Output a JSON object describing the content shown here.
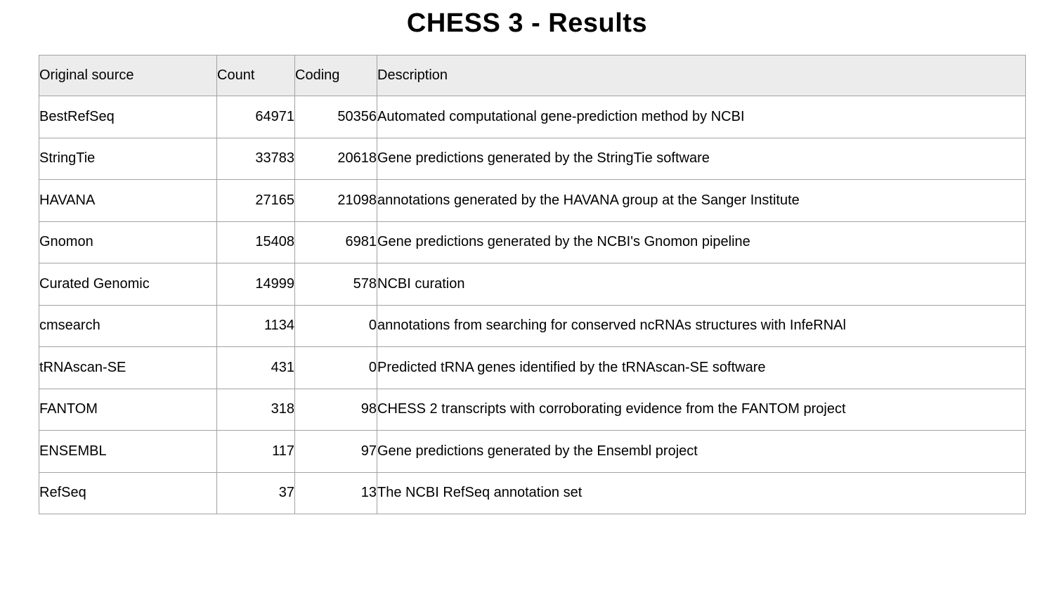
{
  "page": {
    "title": "CHESS 3 - Results"
  },
  "colors": {
    "background": "#ffffff",
    "header_bg": "#ececec",
    "border": "#a2a2a2",
    "text": "#000000"
  },
  "table": {
    "headers": [
      "Original source",
      "Count",
      "Coding",
      "Description"
    ],
    "rows": [
      {
        "source": "BestRefSeq",
        "count": "64971",
        "coding": "50356",
        "description": "Automated computational gene-prediction method by NCBI"
      },
      {
        "source": "StringTie",
        "count": "33783",
        "coding": "20618",
        "description": "Gene predictions generated by the StringTie software"
      },
      {
        "source": "HAVANA",
        "count": "27165",
        "coding": "21098",
        "description": "annotations generated by the HAVANA group at the Sanger Institute"
      },
      {
        "source": "Gnomon",
        "count": "15408",
        "coding": "6981",
        "description": "Gene predictions generated by the NCBI's Gnomon pipeline"
      },
      {
        "source": "Curated Genomic",
        "count": "14999",
        "coding": "578",
        "description": "NCBI curation"
      },
      {
        "source": "cmsearch",
        "count": "1134",
        "coding": "0",
        "description": "annotations from searching for conserved ncRNAs structures with InfeRNAl"
      },
      {
        "source": "tRNAscan-SE",
        "count": "431",
        "coding": "0",
        "description": "Predicted tRNA genes identified by the tRNAscan-SE software"
      },
      {
        "source": "FANTOM",
        "count": "318",
        "coding": "98",
        "description": "CHESS 2 transcripts with corroborating evidence from the FANTOM project"
      },
      {
        "source": "ENSEMBL",
        "count": "117",
        "coding": "97",
        "description": "Gene predictions generated by the Ensembl project"
      },
      {
        "source": "RefSeq",
        "count": "37",
        "coding": "13",
        "description": "The NCBI RefSeq annotation set"
      }
    ]
  },
  "chart_data": {
    "type": "table",
    "title": "CHESS 3 - Results",
    "columns": [
      "Original source",
      "Count",
      "Coding",
      "Description"
    ],
    "rows": [
      [
        "BestRefSeq",
        64971,
        50356,
        "Automated computational gene-prediction method by NCBI"
      ],
      [
        "StringTie",
        33783,
        20618,
        "Gene predictions generated by the StringTie software"
      ],
      [
        "HAVANA",
        27165,
        21098,
        "annotations generated by the HAVANA group at the Sanger Institute"
      ],
      [
        "Gnomon",
        15408,
        6981,
        "Gene predictions generated by the NCBI's Gnomon pipeline"
      ],
      [
        "Curated Genomic",
        14999,
        578,
        "NCBI curation"
      ],
      [
        "cmsearch",
        1134,
        0,
        "annotations from searching for conserved ncRNAs structures with InfeRNAl"
      ],
      [
        "tRNAscan-SE",
        431,
        0,
        "Predicted tRNA genes identified by the tRNAscan-SE software"
      ],
      [
        "FANTOM",
        318,
        98,
        "CHESS 2 transcripts with corroborating evidence from the FANTOM project"
      ],
      [
        "ENSEMBL",
        117,
        97,
        "Gene predictions generated by the Ensembl project"
      ],
      [
        "RefSeq",
        37,
        13,
        "The NCBI RefSeq annotation set"
      ]
    ]
  }
}
